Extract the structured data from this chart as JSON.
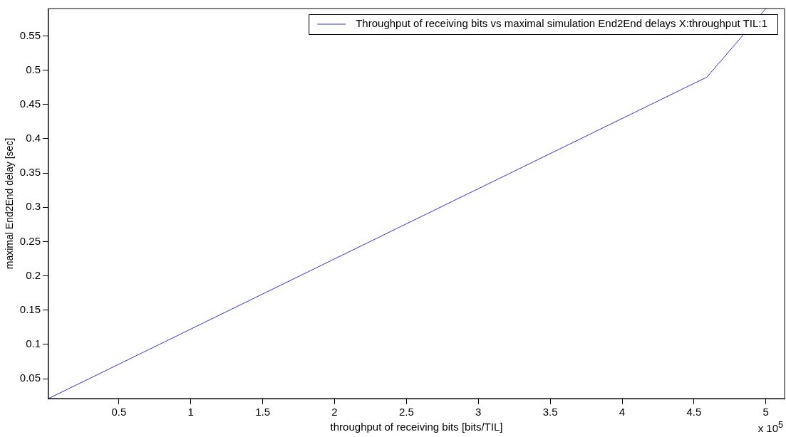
{
  "chart_data": {
    "type": "line",
    "xlabel": "throughput of receiving bits [bits/TIL]",
    "ylabel": "maximal End2End delay [sec]",
    "x": [
      0.01,
      4.59,
      5.0
    ],
    "series": [
      {
        "name": "Throughput of receiving bits vs maximal simulation End2End delays X:throughput TIL:1",
        "color": "#3333cc",
        "values": [
          0.021,
          0.49,
          0.59
        ]
      }
    ],
    "xlim": [
      0.01,
      5.13
    ],
    "ylim": [
      0.021,
      0.59
    ],
    "xticks": [
      0.5,
      1,
      1.5,
      2,
      2.5,
      3,
      3.5,
      4,
      4.5,
      5
    ],
    "yticks": [
      0.05,
      0.1,
      0.15,
      0.2,
      0.25,
      0.3,
      0.35,
      0.4,
      0.45,
      0.5,
      0.55
    ],
    "annotations": [
      "x 10$^{5}$"
    ],
    "legend": "top right",
    "grid": false,
    "marker": "none",
    "line_style": "solid"
  }
}
